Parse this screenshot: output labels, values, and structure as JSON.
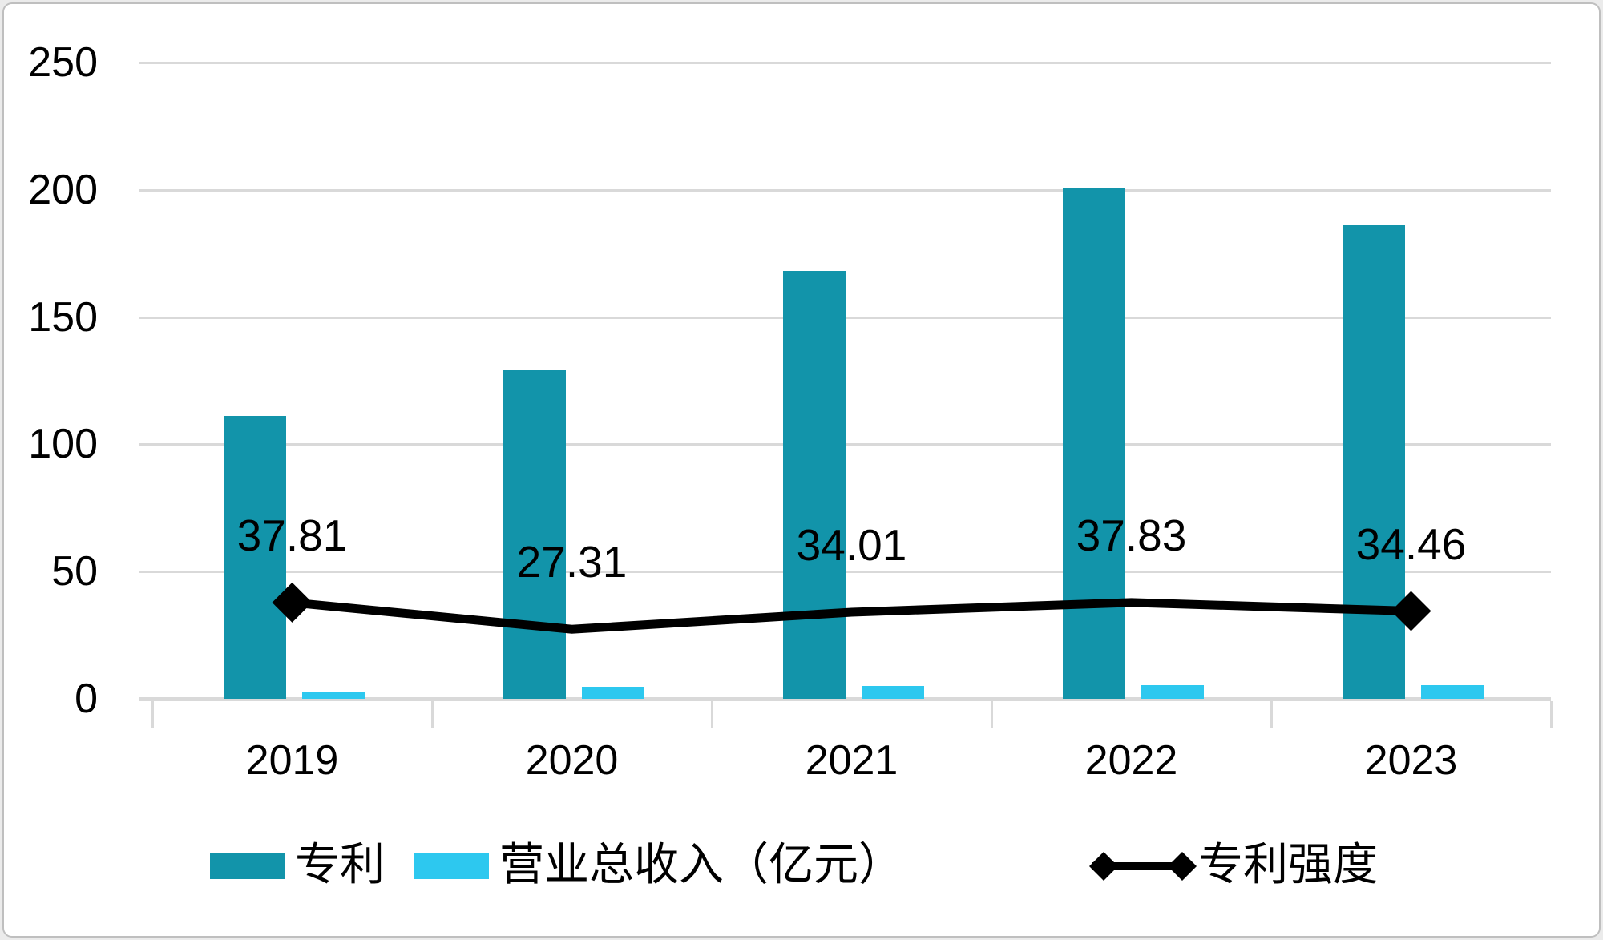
{
  "chart_data": {
    "type": "combo",
    "categories": [
      "2019",
      "2020",
      "2021",
      "2022",
      "2023"
    ],
    "series": [
      {
        "name": "专利",
        "type": "bar",
        "color": "#1294aa",
        "values": [
          111,
          129,
          168,
          201,
          186
        ]
      },
      {
        "name": "营业总收入（亿元）",
        "type": "bar",
        "color": "#2dc8ef",
        "values": [
          2.9,
          4.7,
          4.9,
          5.3,
          5.4
        ]
      },
      {
        "name": "专利强度",
        "type": "line",
        "color": "#000000",
        "marker": "diamond",
        "values": [
          37.81,
          27.31,
          34.01,
          37.83,
          34.46
        ],
        "data_labels": [
          "37.81",
          "27.31",
          "34.01",
          "37.83",
          "34.46"
        ]
      }
    ],
    "ylim": [
      0,
      250
    ],
    "yticks": [
      0,
      50,
      100,
      150,
      200,
      250
    ],
    "grid": true,
    "legend_position": "bottom",
    "title": "",
    "xlabel": "",
    "ylabel": ""
  },
  "legend": {
    "patents": "专利",
    "revenue": "营业总收入（亿元）",
    "intensity": "专利强度"
  },
  "colors": {
    "patents_bar": "#1294aa",
    "revenue_bar": "#2dc8ef",
    "intensity_line": "#000000",
    "gridline": "#d9d9d9",
    "axis_text": "#000000",
    "card_border": "#bfbfbf",
    "background": "#ffffff"
  }
}
